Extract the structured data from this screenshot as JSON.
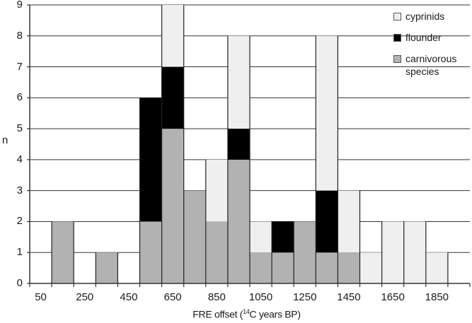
{
  "chart_data": {
    "type": "bar",
    "stacked": true,
    "title": "",
    "xlabel_prefix": "FRE offset (",
    "xlabel_sup": "14",
    "xlabel_suffix": "C years BP)",
    "ylabel": "n",
    "ylim": [
      0,
      9
    ],
    "yticks": [
      "0",
      "1",
      "2",
      "3",
      "4",
      "5",
      "6",
      "7",
      "8",
      "9"
    ],
    "xtick_labels": [
      "50",
      "250",
      "450",
      "650",
      "850",
      "1050",
      "1250",
      "1450",
      "1650",
      "1850"
    ],
    "bin_width": 100,
    "categories": [
      "50",
      "150",
      "250",
      "350",
      "450",
      "550",
      "650",
      "750",
      "850",
      "950",
      "1050",
      "1150",
      "1250",
      "1350",
      "1450",
      "1550",
      "1650",
      "1750",
      "1850",
      "1950"
    ],
    "series": [
      {
        "name": "carnivorous species",
        "color": "#b2b2b2",
        "values": [
          0,
          2,
          0,
          1,
          0,
          2,
          5,
          3,
          2,
          4,
          1,
          1,
          2,
          1,
          1,
          0,
          0,
          0,
          0,
          0
        ]
      },
      {
        "name": "flounder",
        "color": "#000000",
        "values": [
          0,
          0,
          0,
          0,
          0,
          4,
          2,
          0,
          0,
          1,
          0,
          1,
          0,
          2,
          0,
          0,
          0,
          0,
          0,
          0
        ]
      },
      {
        "name": "cyprinids",
        "color": "#efefef",
        "values": [
          0,
          0,
          0,
          0,
          0,
          0,
          2,
          0,
          2,
          3,
          1,
          0,
          0,
          5,
          2,
          1,
          2,
          2,
          1,
          0
        ]
      }
    ],
    "grid": true,
    "legend_position": "top-right",
    "legend": [
      {
        "label": "cyprinids",
        "color": "#efefef"
      },
      {
        "label": "flounder",
        "color": "#000000"
      },
      {
        "label": "carnivorous species",
        "color": "#b2b2b2"
      }
    ]
  }
}
